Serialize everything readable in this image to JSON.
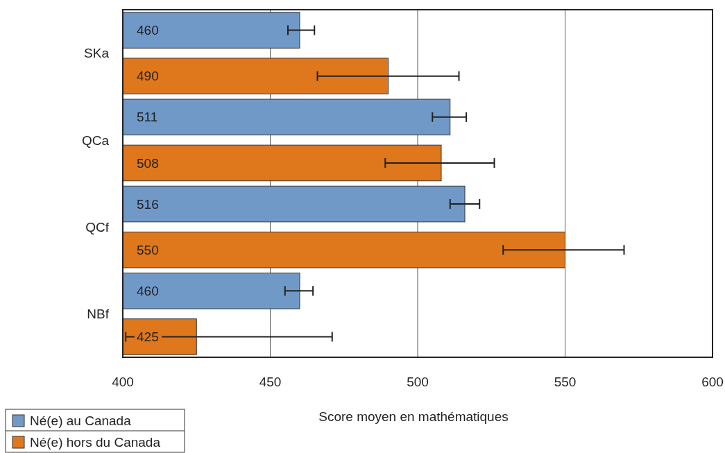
{
  "chart_data": {
    "type": "bar",
    "orientation": "horizontal",
    "xlabel": "Score moyen en mathématiques",
    "categories": [
      "SKa",
      "QCa",
      "QCf",
      "NBf"
    ],
    "series": [
      {
        "name": "Né(e) au Canada",
        "color": "#7099c8",
        "values": [
          460,
          511,
          516,
          460
        ],
        "errors": [
          [
            456,
            465
          ],
          [
            505,
            516.5
          ],
          [
            511,
            521
          ],
          [
            455,
            464.5
          ]
        ]
      },
      {
        "name": "Né(e) hors du Canada",
        "color": "#df771c",
        "values": [
          490,
          508,
          550,
          425
        ],
        "errors": [
          [
            466,
            514
          ],
          [
            489,
            526
          ],
          [
            529,
            570
          ],
          [
            401,
            471
          ]
        ]
      }
    ],
    "xlim": [
      400,
      600
    ],
    "xticks": [
      400,
      450,
      500,
      550,
      600
    ],
    "grid": "x",
    "legend": "bottom left",
    "data_labels": true
  }
}
